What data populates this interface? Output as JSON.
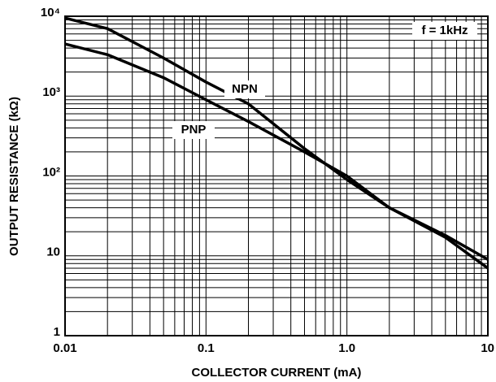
{
  "chart_data": {
    "type": "line",
    "x_label": "COLLECTOR CURRENT (mA)",
    "y_label": "OUTPUT RESISTANCE (kΩ)",
    "annotations": [
      "NPN",
      "PNP",
      "f = 1kHz"
    ],
    "x": [
      0.01,
      0.02,
      0.05,
      0.1,
      0.2,
      0.5,
      1,
      2,
      5,
      10
    ],
    "series": [
      {
        "name": "NPN",
        "color": "#000000",
        "values": [
          9500,
          7000,
          3000,
          1500,
          800,
          220,
          90,
          40,
          17,
          7
        ]
      },
      {
        "name": "PNP",
        "color": "#000000",
        "values": [
          4500,
          3300,
          1700,
          900,
          480,
          200,
          100,
          40,
          18,
          9
        ]
      }
    ],
    "xlim": [
      0.01,
      10
    ],
    "ylim": [
      1,
      10000
    ],
    "xticks": [
      0.01,
      0.1,
      {
        "value": 1,
        "label": "1.0"
      },
      10
    ],
    "yticks": [
      1,
      10,
      {
        "value": 100,
        "label": "10²"
      },
      {
        "value": 1000,
        "label": "10³"
      },
      {
        "value": 10000,
        "label": "10⁴"
      }
    ],
    "xscale": "log",
    "yscale": "log",
    "grid": true
  }
}
